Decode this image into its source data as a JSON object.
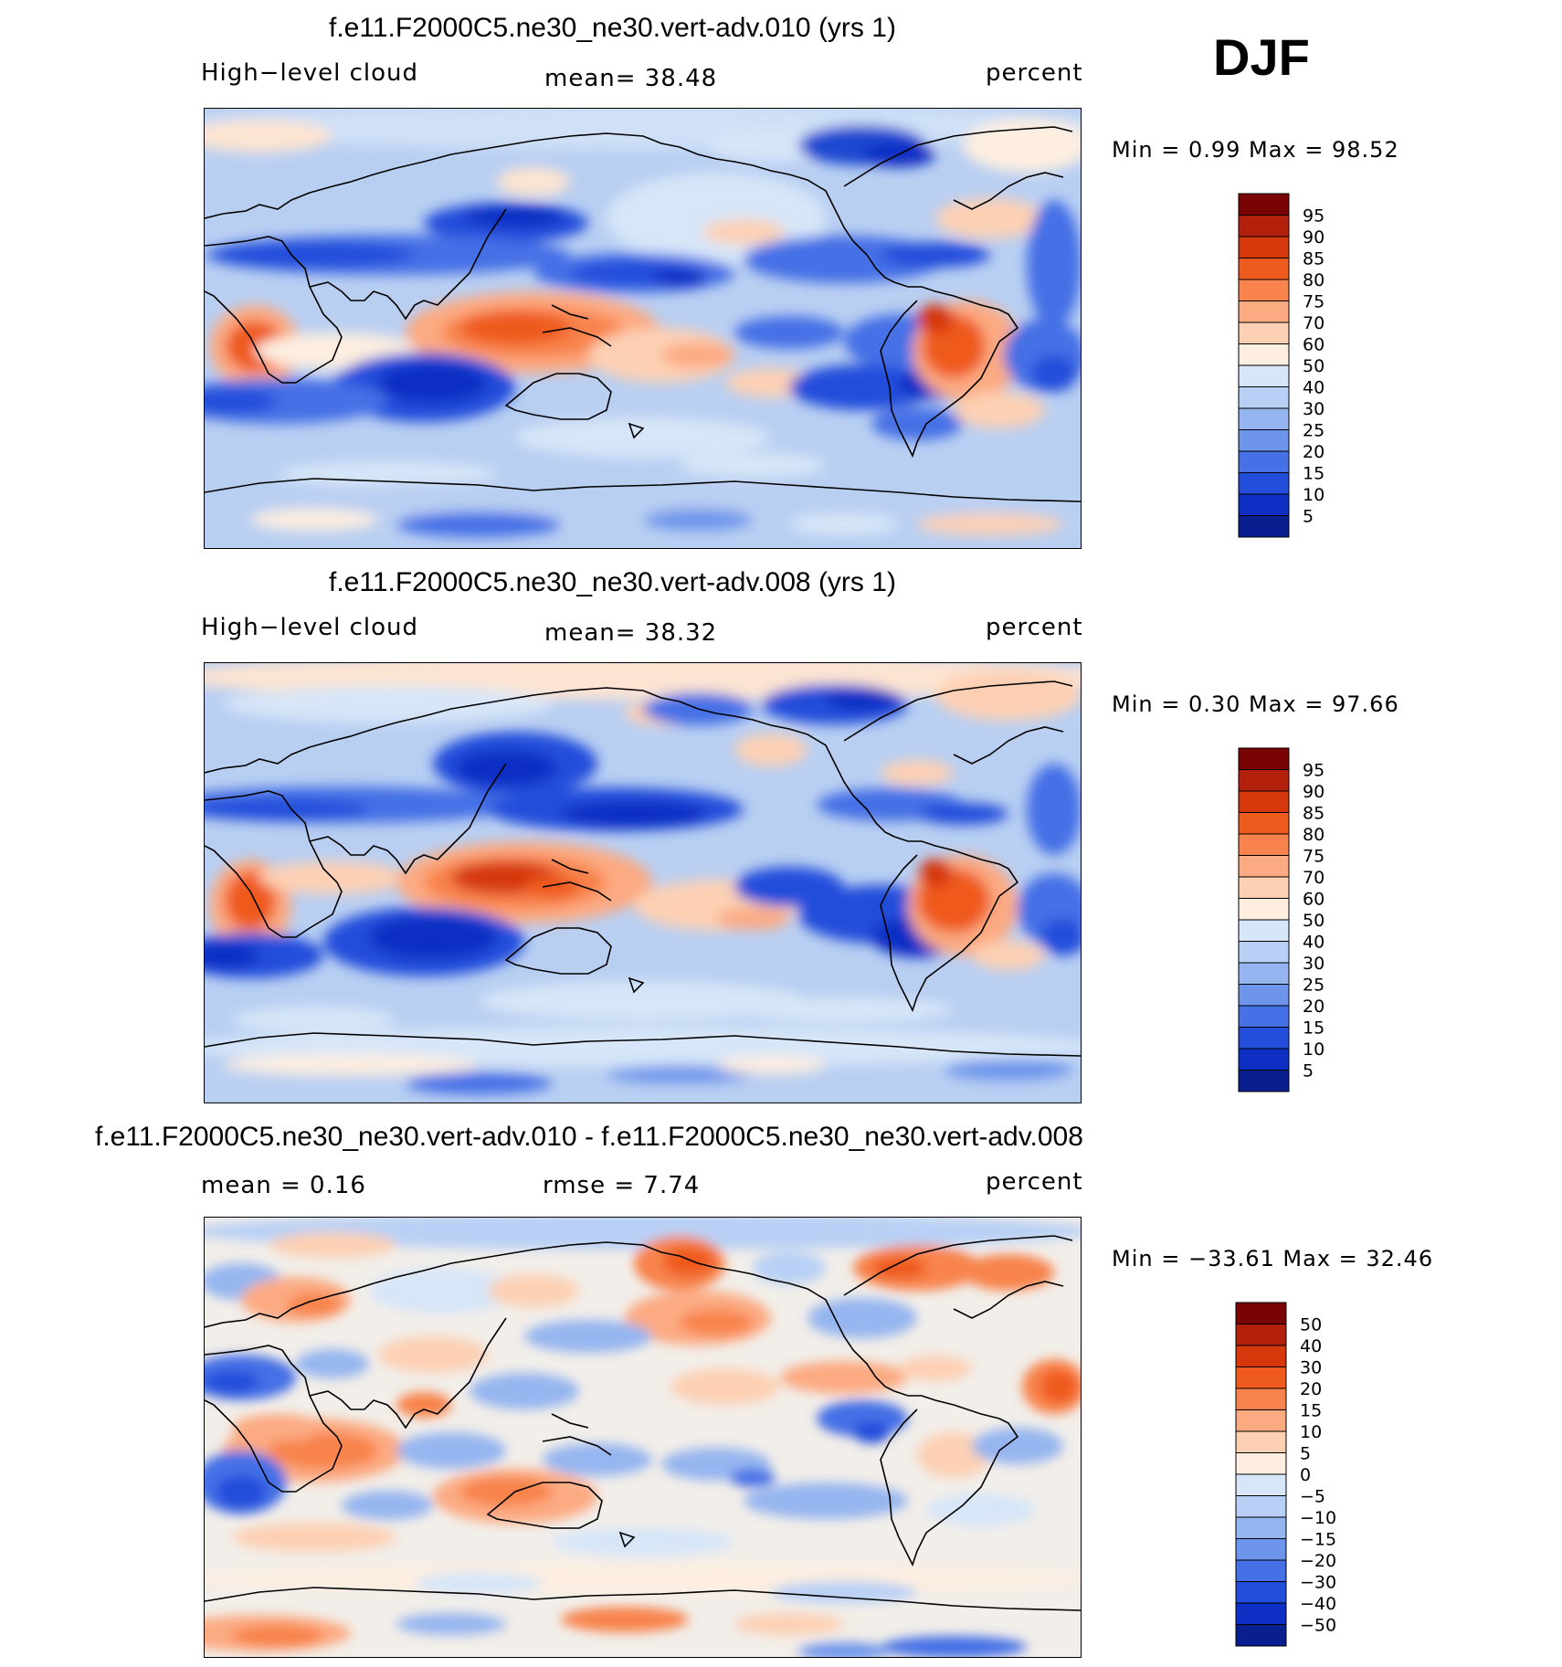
{
  "season": "DJF",
  "panels": [
    {
      "id": "top",
      "title": "f.e11.F2000C5.ne30_ne30.vert-adv.010 (yrs 1)",
      "left_label": "High−level cloud",
      "center_label": "mean=   38.48",
      "right_label": "percent",
      "minmax": "Min =     0.99  Max =    98.52",
      "colorbar": {
        "labels": [
          "95",
          "90",
          "85",
          "80",
          "75",
          "70",
          "60",
          "50",
          "40",
          "30",
          "25",
          "20",
          "15",
          "10",
          "5"
        ],
        "colors": [
          "#7a0403",
          "#b3200c",
          "#d6380c",
          "#ef5a1e",
          "#f8834c",
          "#fcaa82",
          "#fdd0b4",
          "#fdeee0",
          "#d7e6f8",
          "#b8d0f5",
          "#95b5f0",
          "#6e95ec",
          "#4570e6",
          "#234ddb",
          "#0d2fc4",
          "#0a1f8f"
        ]
      }
    },
    {
      "id": "middle",
      "title": "f.e11.F2000C5.ne30_ne30.vert-adv.008 (yrs 1)",
      "left_label": "High−level cloud",
      "center_label": "mean=   38.32",
      "right_label": "percent",
      "minmax": "Min =     0.30  Max =    97.66",
      "colorbar": {
        "labels": [
          "95",
          "90",
          "85",
          "80",
          "75",
          "70",
          "60",
          "50",
          "40",
          "30",
          "25",
          "20",
          "15",
          "10",
          "5"
        ],
        "colors": [
          "#7a0403",
          "#b3200c",
          "#d6380c",
          "#ef5a1e",
          "#f8834c",
          "#fcaa82",
          "#fdd0b4",
          "#fdeee0",
          "#d7e6f8",
          "#b8d0f5",
          "#95b5f0",
          "#6e95ec",
          "#4570e6",
          "#234ddb",
          "#0d2fc4",
          "#0a1f8f"
        ]
      }
    },
    {
      "id": "bottom",
      "title": "f.e11.F2000C5.ne30_ne30.vert-adv.010 - f.e11.F2000C5.ne30_ne30.vert-adv.008",
      "left_label": "mean =     0.16",
      "center_label": "rmse =     7.74",
      "right_label": "percent",
      "minmax": "Min = −33.61  Max =    32.46",
      "colorbar": {
        "labels": [
          "50",
          "40",
          "30",
          "20",
          "15",
          "10",
          "5",
          "0",
          "−5",
          "−10",
          "−15",
          "−20",
          "−30",
          "−40",
          "−50"
        ],
        "colors": [
          "#7a0403",
          "#b3200c",
          "#d6380c",
          "#ef5a1e",
          "#f8834c",
          "#fcaa82",
          "#fdd0b4",
          "#fdeee0",
          "#d7e6f8",
          "#b8d0f5",
          "#95b5f0",
          "#6e95ec",
          "#4570e6",
          "#234ddb",
          "#0d2fc4",
          "#0a1f8f"
        ]
      }
    }
  ]
}
